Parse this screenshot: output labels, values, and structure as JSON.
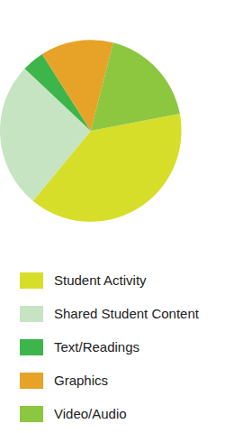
{
  "chart_data": {
    "type": "pie",
    "categories": [
      "Student Activity",
      "Shared Student Content",
      "Text/Readings",
      "Graphics",
      "Video/Audio"
    ],
    "values": [
      39,
      26,
      4,
      13,
      18
    ],
    "colors": [
      "#d6de2a",
      "#c7e4c2",
      "#3db54a",
      "#e6a327",
      "#8dc63f"
    ],
    "legend": "bottom",
    "data_labels": false
  }
}
